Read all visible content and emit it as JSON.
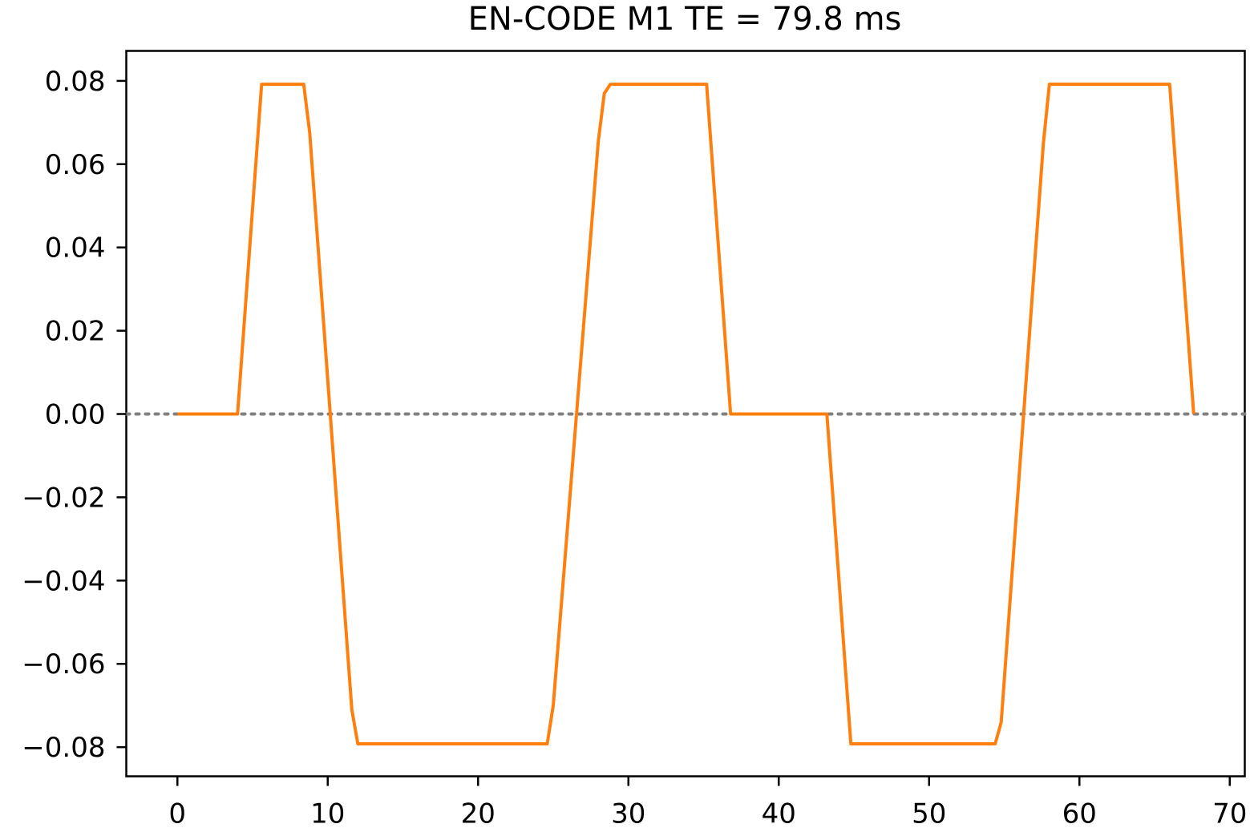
{
  "chart_data": {
    "type": "line",
    "title": "EN-CODE M1  TE = 79.8 ms",
    "xlabel": "",
    "ylabel": "",
    "xlim": [
      -3.4,
      71.0
    ],
    "ylim": [
      -0.087,
      0.0872
    ],
    "x_ticks": [
      0,
      10,
      20,
      30,
      40,
      50,
      60,
      70
    ],
    "x_tick_labels": [
      "0",
      "10",
      "20",
      "30",
      "40",
      "50",
      "60",
      "70"
    ],
    "y_ticks": [
      0.08,
      0.06,
      0.04,
      0.02,
      0.0,
      -0.02,
      -0.04,
      -0.06,
      -0.08
    ],
    "y_tick_labels": [
      "0.08",
      "0.06",
      "0.04",
      "0.02",
      "0.00",
      "−0.02",
      "−0.04",
      "−0.06",
      "−0.08"
    ],
    "grid": false,
    "reference_line": {
      "y": 0.0,
      "style": "dotted",
      "color": "#808080"
    },
    "series": [
      {
        "color": "#ff7f0e",
        "x": [
          0,
          4.0,
          5.6,
          8.4,
          8.8,
          11.6,
          12.0,
          24.6,
          25.0,
          25.4,
          28.0,
          28.4,
          28.8,
          35.2,
          36.8,
          43.2,
          44.8,
          54.4,
          54.8,
          57.6,
          58.0,
          66.0,
          67.6
        ],
        "y": [
          0.0,
          0.0,
          0.0792,
          0.0792,
          0.0675,
          -0.071,
          -0.0792,
          -0.0792,
          -0.07,
          -0.052,
          0.0655,
          0.077,
          0.0792,
          0.0792,
          0.0,
          0.0,
          -0.0792,
          -0.0792,
          -0.074,
          0.065,
          0.0792,
          0.0792,
          0.0
        ]
      }
    ]
  }
}
